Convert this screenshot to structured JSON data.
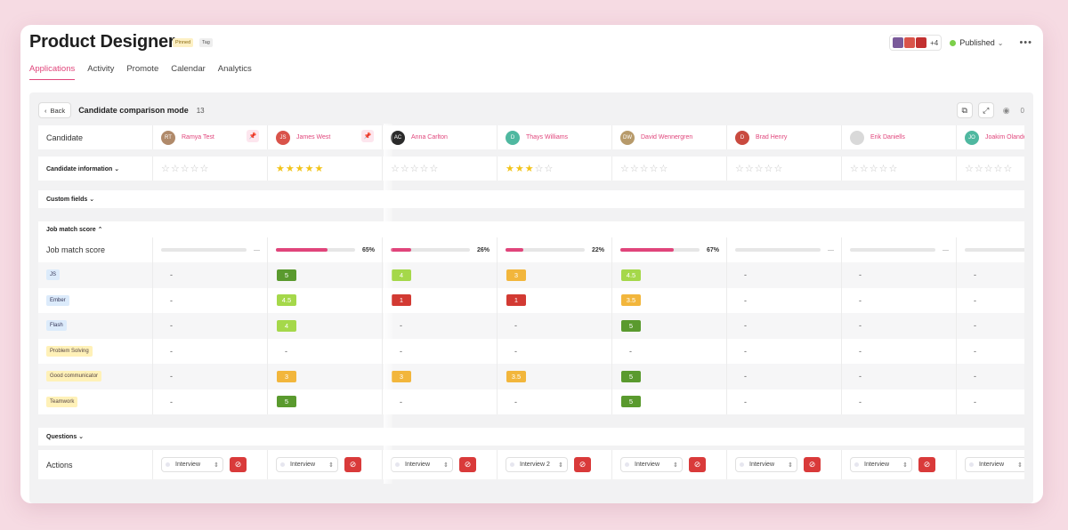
{
  "page": {
    "title": "Product Designer",
    "chips": [
      "Pinned",
      "Tag"
    ]
  },
  "header": {
    "avatar_more": "+4",
    "status": "Published",
    "menu_icon": "more-icon"
  },
  "tabs": [
    "Applications",
    "Activity",
    "Promote",
    "Calendar",
    "Analytics"
  ],
  "comparison": {
    "back_label": "Back",
    "title": "Candidate comparison mode",
    "count": "13",
    "views": "0"
  },
  "rows": {
    "candidate": "Candidate",
    "candidate_info": "Candidate information",
    "custom_fields": "Custom fields",
    "job_match_section": "Job match score",
    "job_match": "Job match score",
    "questions": "Questions",
    "actions": "Actions"
  },
  "skills": [
    {
      "name": "JS",
      "color": "blue"
    },
    {
      "name": "Ember",
      "color": "blue"
    },
    {
      "name": "Flash",
      "color": "blue"
    },
    {
      "name": "Problem Solving",
      "color": "yellow"
    },
    {
      "name": "Good communicator",
      "color": "yellow"
    },
    {
      "name": "Teamwork",
      "color": "yellow"
    }
  ],
  "candidates": [
    {
      "name": "Ramya Test",
      "initials": "RT",
      "avatar_color": "#b08a6a",
      "pinned": true,
      "stars": 0,
      "match": null,
      "match_label": "—",
      "scores": [
        "-",
        "-",
        "-",
        "-",
        "-",
        "-"
      ],
      "stage": "Interview"
    },
    {
      "name": "James West",
      "initials": "JS",
      "avatar_color": "#d9534a",
      "pinned": true,
      "stars": 5,
      "match": 0.65,
      "match_label": "65%",
      "scores": [
        "5",
        "4.5",
        "4",
        "-",
        "3",
        "5"
      ],
      "stage": "Interview"
    },
    {
      "name": "Anna Carlton",
      "initials": "AC",
      "avatar_color": "#2b2b2b",
      "pinned": false,
      "stars": 0,
      "match": 0.26,
      "match_label": "26%",
      "scores": [
        "4",
        "1",
        "-",
        "-",
        "3",
        "-"
      ],
      "stage": "Interview"
    },
    {
      "name": "Thays Williams",
      "initials": "D",
      "avatar_color": "#4fb8a0",
      "pinned": false,
      "stars": 2.5,
      "match": 0.22,
      "match_label": "22%",
      "scores": [
        "3",
        "1",
        "-",
        "-",
        "3.5",
        "-"
      ],
      "stage": "Interview 2"
    },
    {
      "name": "David Wennergren",
      "initials": "DW",
      "avatar_color": "#b79a6a",
      "pinned": false,
      "stars": 0,
      "match": 0.67,
      "match_label": "67%",
      "scores": [
        "4.5",
        "3.5",
        "5",
        "-",
        "5",
        "5"
      ],
      "stage": "Interview"
    },
    {
      "name": "Brad Henry",
      "initials": "D",
      "avatar_color": "#c94a3f",
      "pinned": false,
      "stars": 0,
      "match": null,
      "match_label": "—",
      "scores": [
        "-",
        "-",
        "-",
        "-",
        "-",
        "-"
      ],
      "stage": "Interview"
    },
    {
      "name": "Erik Daniells",
      "initials": "",
      "avatar_color": "#d9d9d9",
      "pinned": false,
      "stars": 0,
      "match": null,
      "match_label": "—",
      "scores": [
        "-",
        "-",
        "-",
        "-",
        "-",
        "-"
      ],
      "stage": "Interview"
    },
    {
      "name": "Joakim Olander",
      "initials": "JO",
      "avatar_color": "#4fb8a0",
      "pinned": false,
      "stars": 0,
      "match": null,
      "match_label": "",
      "scores": [
        "-",
        "-",
        "-",
        "-",
        "-",
        "-"
      ],
      "stage": "Interview"
    }
  ],
  "score_colors": {
    "5": "#5a9a2e",
    "4.5": "#a5d84a",
    "4": "#a5d84a",
    "3.5": "#f2b63c",
    "3": "#f2b63c",
    "1": "#d23a33"
  },
  "icons": {
    "pin": "pin-icon",
    "back": "chevron-left-icon",
    "copy": "duplicate-icon",
    "expand": "expand-icon",
    "eye": "eye-icon",
    "reject": "block-icon"
  }
}
